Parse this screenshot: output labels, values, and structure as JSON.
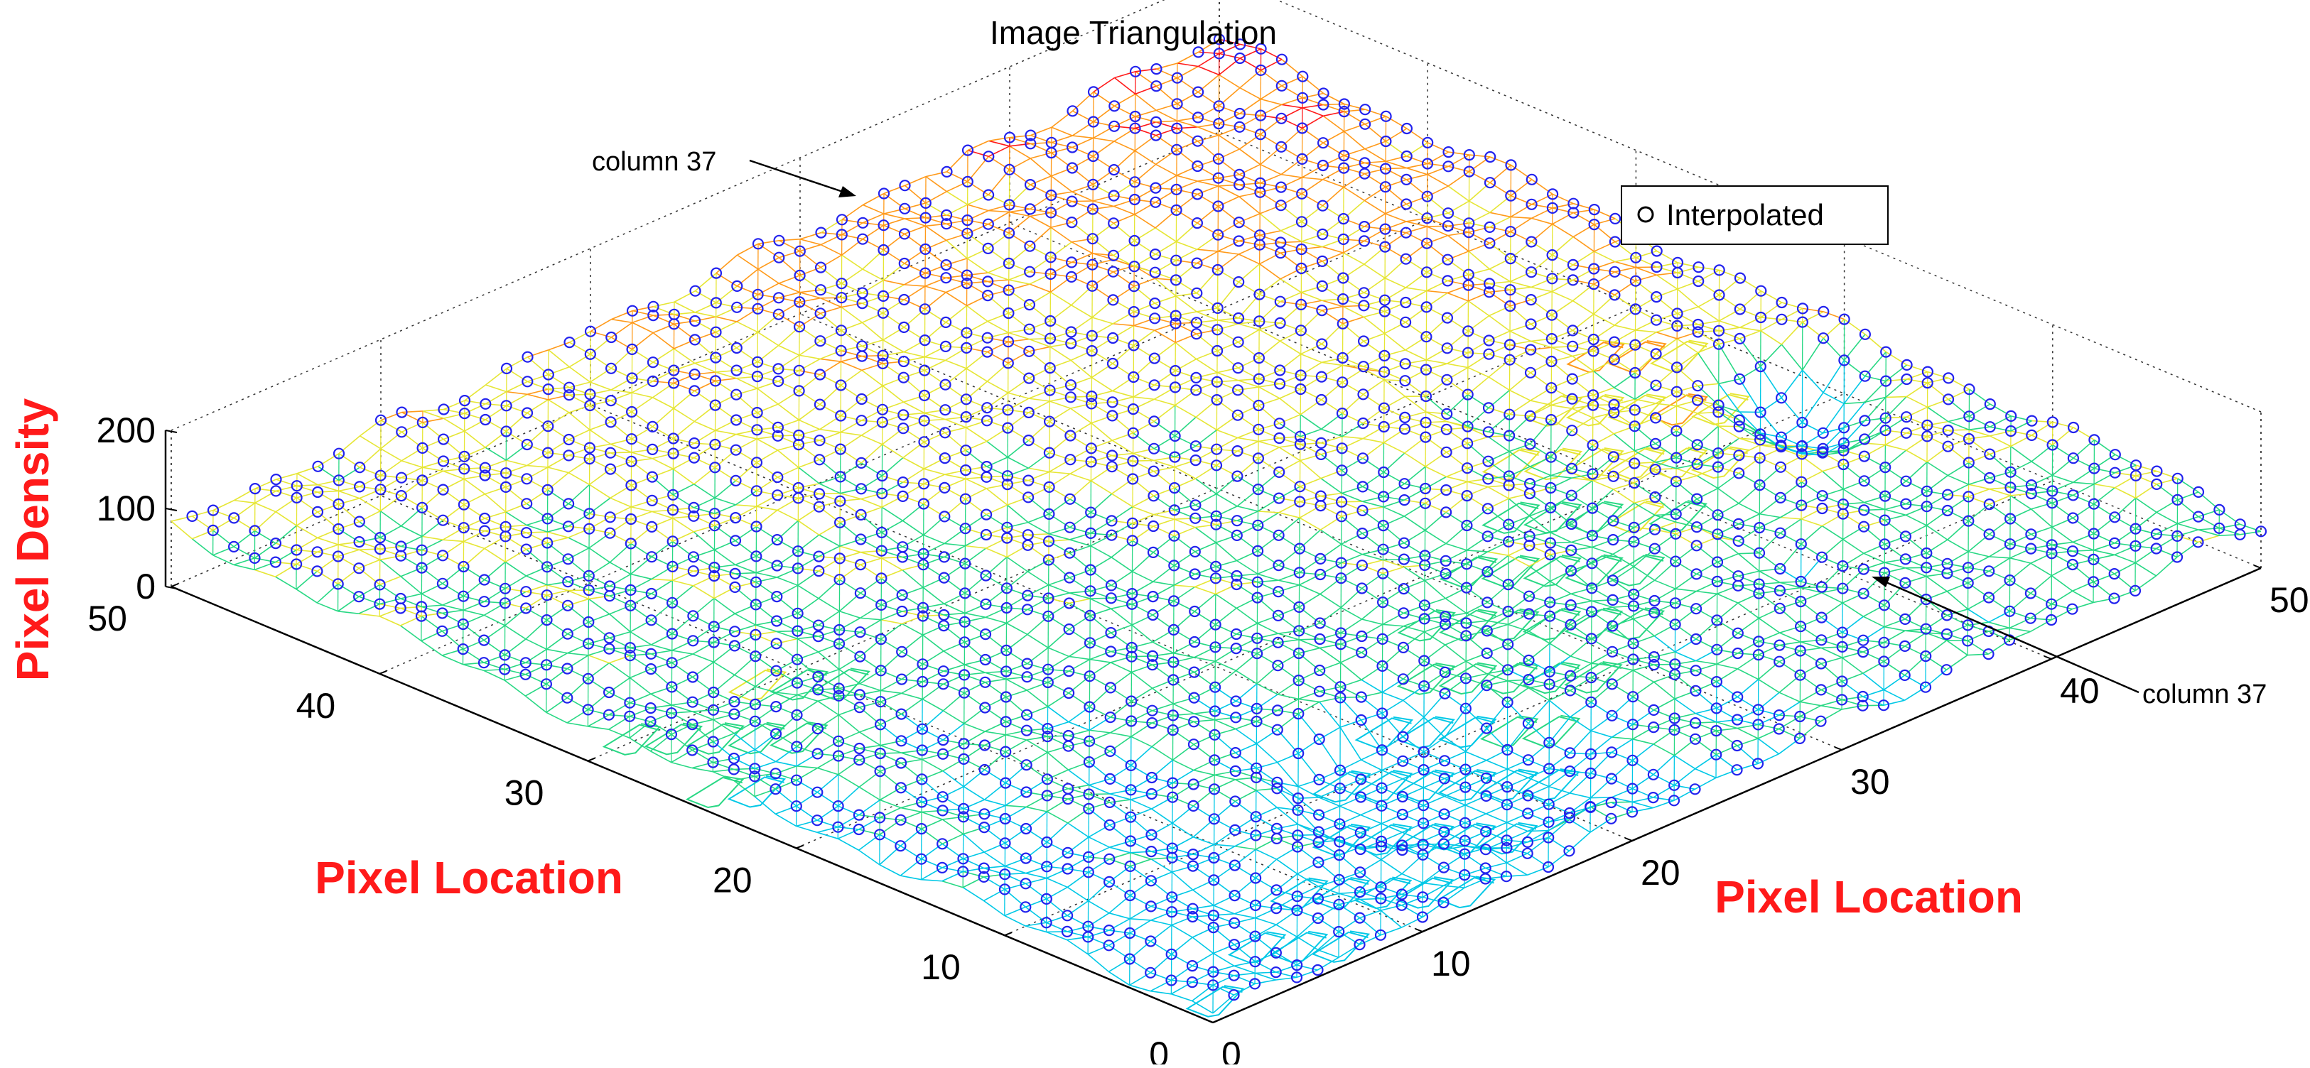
{
  "chart_data": {
    "type": "3d-surface-triangulation",
    "title": "Image Triangulation",
    "xlabel": "Pixel Location",
    "ylabel": "Pixel Location",
    "zlabel": "Pixel Density",
    "xlim": [
      0,
      50
    ],
    "ylim": [
      0,
      50
    ],
    "zlim": [
      0,
      200
    ],
    "x_ticks": [
      "0",
      "10",
      "20",
      "30",
      "40",
      "50"
    ],
    "y_ticks": [
      "0",
      "10",
      "20",
      "30",
      "40",
      "50"
    ],
    "z_ticks": [
      "0",
      "100",
      "200"
    ],
    "grid": true,
    "legend": {
      "entries": [
        "Interpolated"
      ],
      "marker": "o",
      "placement": "top-right"
    },
    "annotations": [
      "column 37",
      "column 37"
    ],
    "highlighted_column": 37,
    "series": [
      {
        "name": "Interpolated",
        "marker": "o",
        "color": "#2222ee"
      }
    ],
    "colors": {
      "marker": "#2222ee",
      "axis_label": "#ff1a1a",
      "mesh_low": "#0000ff",
      "mesh_high": "#ff0000"
    }
  }
}
